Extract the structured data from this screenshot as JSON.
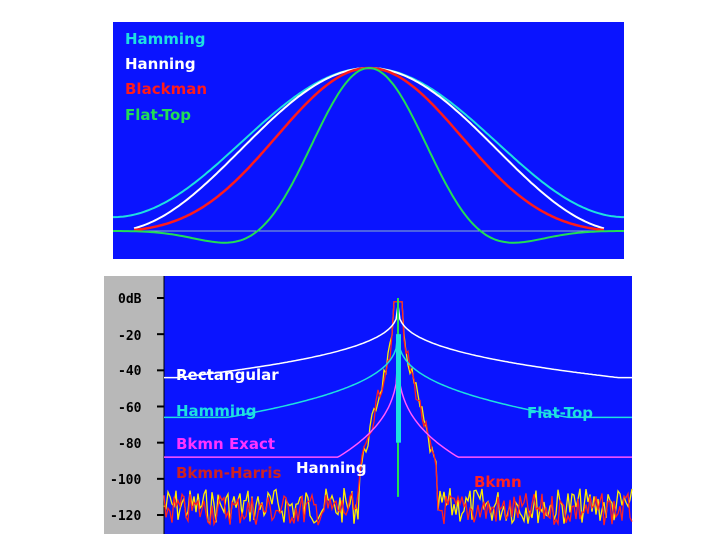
{
  "chart_data": [
    {
      "type": "line",
      "title": "",
      "xlabel": "",
      "ylabel": "",
      "grid": false,
      "legend_placement": "top-left",
      "series": [
        {
          "name": "Hamming",
          "color": "#1ee0e0"
        },
        {
          "name": "Hanning",
          "color": "#ffffff"
        },
        {
          "name": "Blackman",
          "color": "#ff1a1a"
        },
        {
          "name": "Flat-Top",
          "color": "#22dd55"
        }
      ],
      "background_color": "#0a14ff"
    },
    {
      "type": "line",
      "title": "",
      "xlabel": "",
      "ylabel": "",
      "yunit": "dB",
      "y_ticks": [
        "0dB",
        "-20",
        "-40",
        "-60",
        "-80",
        "-100",
        "-120"
      ],
      "ylim": [
        -120,
        0
      ],
      "grid": false,
      "series_labels": [
        {
          "name": "Rectangular",
          "color": "#ffffff",
          "floor_db": -44
        },
        {
          "name": "Hamming",
          "color": "#1ee0e0",
          "floor_db": -66
        },
        {
          "name": "Flat-Top",
          "color": "#1ee0e0",
          "floor_db": -68
        },
        {
          "name": "Bkmn Exact",
          "color": "#ff33ff",
          "floor_db": -88
        },
        {
          "name": "Bkmn-Harris",
          "color": "#cc2222",
          "floor_db": -110
        },
        {
          "name": "Hanning",
          "color": "#ffffff",
          "floor_db": -112
        },
        {
          "name": "Bkmn",
          "color": "#ff2222",
          "floor_db": -115
        }
      ],
      "background_color": "#0a14ff",
      "axis_panel_color": "#b8b8b8"
    }
  ]
}
